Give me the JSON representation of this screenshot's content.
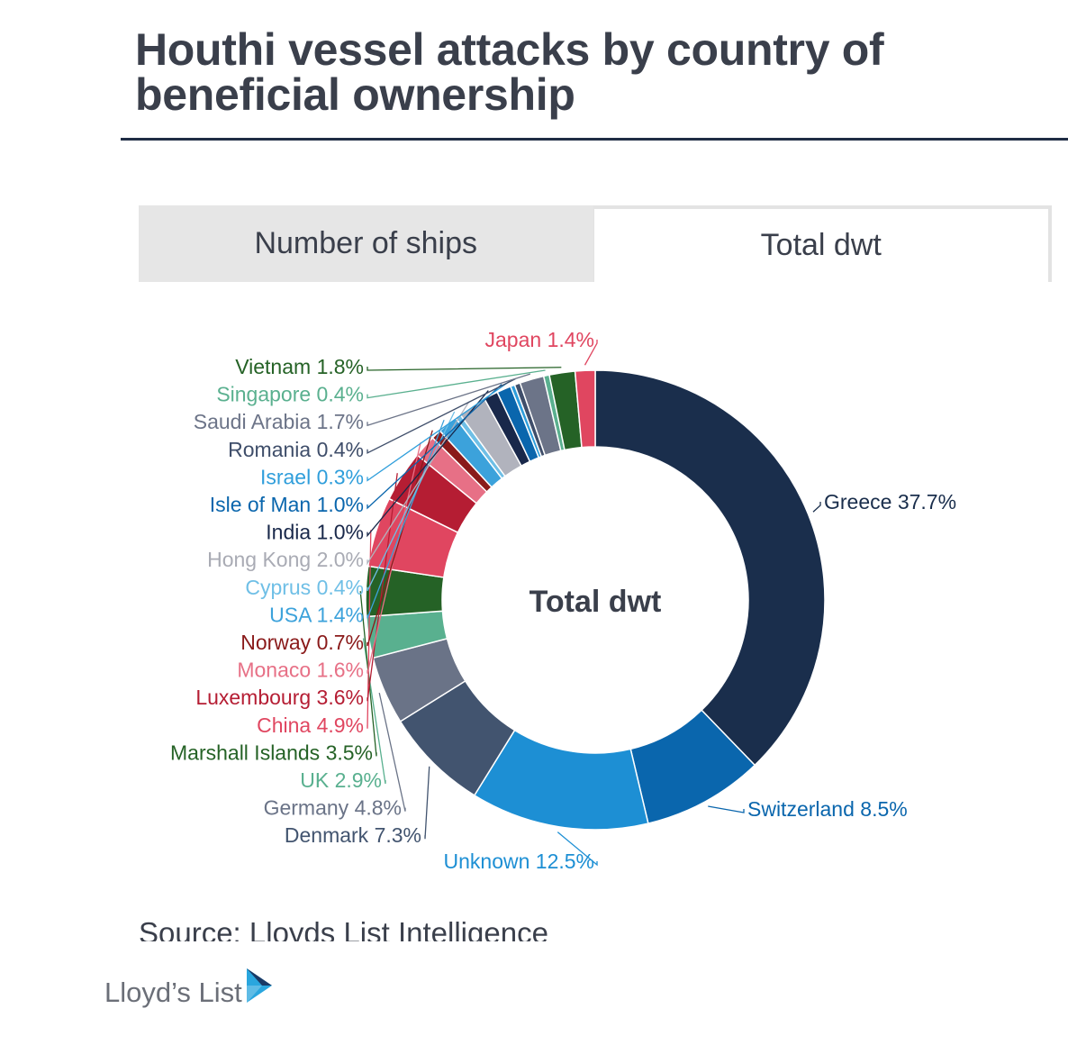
{
  "title": "Houthi vessel attacks by country of beneficial ownership",
  "tabs": [
    {
      "label": "Number of ships",
      "active": false
    },
    {
      "label": "Total dwt",
      "active": true
    }
  ],
  "source": "Source: Lloyds List Intelligence",
  "logo": {
    "text": "Lloyd’s List",
    "accent_color": "#2aa6de"
  },
  "chart_data": {
    "type": "pie",
    "variant": "donut",
    "center_label": "Total dwt",
    "slices": [
      {
        "label": "Greece 37.7%",
        "value": 37.7,
        "color": "#1a2e4c"
      },
      {
        "label": "Switzerland 8.5%",
        "value": 8.5,
        "color": "#0a66ad"
      },
      {
        "label": "Unknown 12.5%",
        "value": 12.5,
        "color": "#1d8fd4"
      },
      {
        "label": "Denmark 7.3%",
        "value": 7.3,
        "color": "#42546f"
      },
      {
        "label": "Germany 4.8%",
        "value": 4.8,
        "color": "#6a7387"
      },
      {
        "label": "UK 2.9%",
        "value": 2.9,
        "color": "#59b08f"
      },
      {
        "label": "Marshall Islands 3.5%",
        "value": 3.5,
        "color": "#256226"
      },
      {
        "label": "China 4.9%",
        "value": 4.9,
        "color": "#e04660"
      },
      {
        "label": "Luxembourg 3.6%",
        "value": 3.6,
        "color": "#b51d33"
      },
      {
        "label": "Monaco 1.6%",
        "value": 1.6,
        "color": "#e77086"
      },
      {
        "label": "Norway 0.7%",
        "value": 0.7,
        "color": "#8a1a1a"
      },
      {
        "label": "USA 1.4%",
        "value": 1.4,
        "color": "#3ca2db"
      },
      {
        "label": "Cyprus 0.4%",
        "value": 0.4,
        "color": "#6fbfe6"
      },
      {
        "label": "Hong Kong 2.0%",
        "value": 2.0,
        "color": "#b1b3bd"
      },
      {
        "label": "India 1.0%",
        "value": 1.0,
        "color": "#19284a"
      },
      {
        "label": "Isle of Man 1.0%",
        "value": 1.0,
        "color": "#0a66ad"
      },
      {
        "label": "Israel 0.3%",
        "value": 0.3,
        "color": "#2f9edb"
      },
      {
        "label": "Romania 0.4%",
        "value": 0.4,
        "color": "#3f4e6a"
      },
      {
        "label": "Saudi Arabia 1.7%",
        "value": 1.7,
        "color": "#6c7488"
      },
      {
        "label": "Singapore 0.4%",
        "value": 0.4,
        "color": "#5ab08f"
      },
      {
        "label": "Vietnam 1.8%",
        "value": 1.8,
        "color": "#256226"
      },
      {
        "label": "Japan 1.4%",
        "value": 1.4,
        "color": "#e04660"
      }
    ]
  }
}
